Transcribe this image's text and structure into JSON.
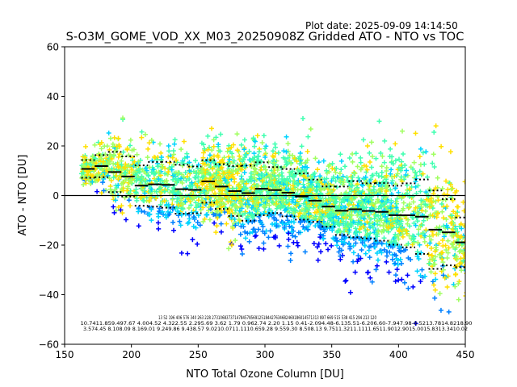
{
  "plot_date": "Plot date: 2025-09-09 14:14:50",
  "chart_data": {
    "type": "scatter",
    "title": "S-O3M_GOME_VOD_XX_M03_20250908Z Gridded ATO - NTO vs TOC",
    "xlabel": "NTO Total Ozone Column [DU]",
    "ylabel": "ATO - NTO [DU]",
    "xlim": [
      150,
      450
    ],
    "ylim": [
      -60,
      60
    ],
    "xticks": [
      "150",
      "200",
      "250",
      "300",
      "350",
      "400",
      "450"
    ],
    "xtick_values": [
      150,
      200,
      250,
      300,
      350,
      400,
      450
    ],
    "yticks": [
      "−60",
      "−40",
      "−20",
      "0",
      "20",
      "40",
      "60"
    ],
    "ytick_values": [
      -60,
      -40,
      -20,
      0,
      20,
      40,
      60
    ],
    "marker": "plus",
    "colormap": [
      "#0000ff",
      "#0080ff",
      "#00d4ff",
      "#40ffb0",
      "#a0ff60",
      "#ffe000"
    ],
    "zero_line": 0,
    "bins": {
      "centers": [
        167.5,
        177.5,
        187.5,
        197.5,
        207.5,
        217.5,
        227.5,
        237.5,
        247.5,
        257.5,
        267.5,
        277.5,
        287.5,
        297.5,
        307.5,
        317.5,
        327.5,
        337.5,
        347.5,
        357.5,
        367.5,
        377.5,
        387.5,
        397.5,
        407.5,
        417.5,
        427.5,
        437.5,
        447.5
      ],
      "mean": [
        10.74,
        11.85,
        9.49,
        7.67,
        4.0,
        4.52,
        4.32,
        2.55,
        2.29,
        5.69,
        3.62,
        1.79,
        0.96,
        2.74,
        2.2,
        1.15,
        -0.41,
        -2.09,
        -4.48,
        -6.13,
        -5.51,
        -6.2,
        -6.6,
        -7.94,
        -7.98,
        -8.52,
        -13.78,
        -14.82,
        -18.9
      ],
      "std": [
        3.57,
        4.45,
        8.1,
        8.09,
        8.16,
        9.01,
        9.24,
        9.86,
        9.43,
        8.57,
        9.02,
        10.07,
        11.11,
        10.65,
        9.28,
        9.55,
        9.3,
        8.5,
        8.13,
        9.75,
        11.32,
        11.11,
        11.65,
        11.9,
        12.9,
        15.0,
        15.83,
        13.34,
        10.02
      ]
    },
    "count_row": "13    52   196 406  576  340  263  228  2731068373714784578569125184427634682469186014571313 897  669  515  538  415  294  213  120",
    "mean_row": "10.7411.859.497.67 4.004.52 4.322.55 2.295.69 3.62 1.79 0.962.74 2.20 1.15 0.41-2.094.48-6.135.51-6.206.60-7.947.98-8.5213.7814.8218.90",
    "std_row": "3.574.45 8.108.09 8.169.01 9.249.86 9.438.57 9.0210.0711.1110.659.28 9.559.30 8.508.13 9.7511.3211.1111.6511.9012.9015.0015.8313.3410.02"
  }
}
